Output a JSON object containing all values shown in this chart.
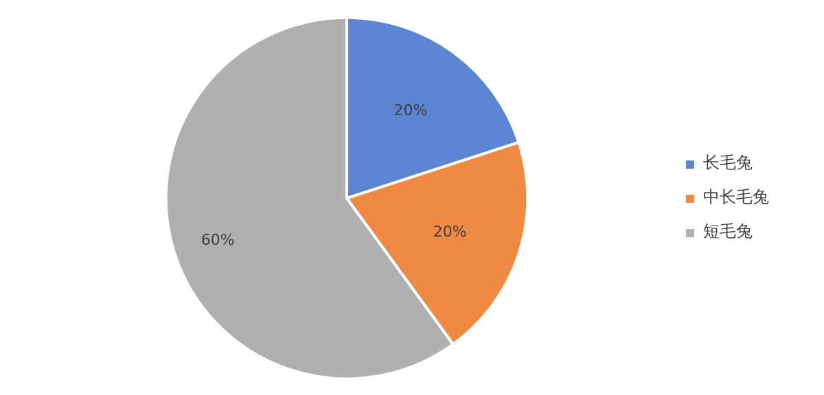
{
  "chart_data": {
    "type": "pie",
    "categories": [
      "长毛兔",
      "中长毛兔",
      "短毛兔"
    ],
    "values": [
      20,
      20,
      60
    ],
    "colors": [
      "#5b85d2",
      "#f08a43",
      "#b0b0b0"
    ],
    "value_labels": [
      "20%",
      "20%",
      "60%"
    ],
    "legend": "right"
  }
}
